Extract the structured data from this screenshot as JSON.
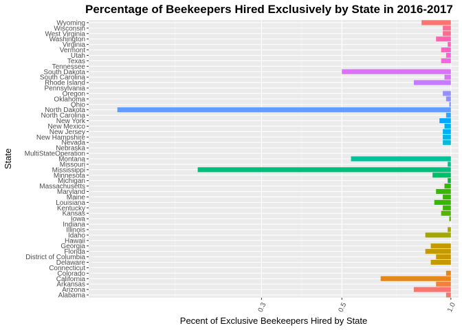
{
  "chart_data": {
    "type": "bar",
    "orientation": "horizontal",
    "title": "Percentage of Beekeepers Hired Exclusively by State in 2016-2017",
    "xlabel": "Pecent of Exclusive Beekeepers Hired by State",
    "ylabel": "State",
    "x_scale": "log",
    "xlim": [
      0.1,
      1.05
    ],
    "x_ticks": [
      {
        "value": 0.3,
        "label": "0.3"
      },
      {
        "value": 0.5,
        "label": "0.5"
      },
      {
        "value": 1.0,
        "label": "1.0"
      }
    ],
    "grid": true,
    "legend": "none",
    "bars": [
      {
        "category": "Alabama",
        "value": 0.97,
        "color": "#F8766D"
      },
      {
        "category": "Arizona",
        "value": 0.79,
        "color": "#F8766D"
      },
      {
        "category": "Arkansas",
        "value": 0.91,
        "color": "#EE8043"
      },
      {
        "category": "California",
        "value": 0.64,
        "color": "#E7851E"
      },
      {
        "category": "Colorado",
        "value": 0.97,
        "color": "#E7851E"
      },
      {
        "category": "Connecticut",
        "value": null,
        "color": "#D89000"
      },
      {
        "category": "Delaware",
        "value": 0.88,
        "color": "#C49A00"
      },
      {
        "category": "District of Columbia",
        "value": 0.91,
        "color": "#C49A00"
      },
      {
        "category": "Florida",
        "value": 0.85,
        "color": "#C49A00"
      },
      {
        "category": "Georgia",
        "value": 0.88,
        "color": "#C49A00"
      },
      {
        "category": "Hawaii",
        "value": null,
        "color": "#A3A500"
      },
      {
        "category": "Idaho",
        "value": 0.85,
        "color": "#A3A500"
      },
      {
        "category": "Illinois",
        "value": 0.98,
        "color": "#A3A500"
      },
      {
        "category": "Indiana",
        "value": null,
        "color": "#7CAE00"
      },
      {
        "category": "Iowa",
        "value": 0.99,
        "color": "#53B400"
      },
      {
        "category": "Kansas",
        "value": 0.94,
        "color": "#53B400"
      },
      {
        "category": "Kentucky",
        "value": 0.95,
        "color": "#39B600"
      },
      {
        "category": "Louisiana",
        "value": 0.9,
        "color": "#39B600"
      },
      {
        "category": "Maine",
        "value": 0.95,
        "color": "#39B600"
      },
      {
        "category": "Maryland",
        "value": 0.91,
        "color": "#39B600"
      },
      {
        "category": "Massachusetts",
        "value": 0.96,
        "color": "#39B600"
      },
      {
        "category": "Michigan",
        "value": 0.98,
        "color": "#00BA38"
      },
      {
        "category": "Minnesota",
        "value": 0.89,
        "color": "#00BE67"
      },
      {
        "category": "Mississippi",
        "value": 0.2,
        "color": "#00BF7D"
      },
      {
        "category": "Missouri",
        "value": 0.98,
        "color": "#00C08B"
      },
      {
        "category": "Montana",
        "value": 0.53,
        "color": "#00C19A"
      },
      {
        "category": "MultiStateOperation",
        "value": null,
        "color": "#00C1A9"
      },
      {
        "category": "Nebraska",
        "value": null,
        "color": "#00BFC4"
      },
      {
        "category": "Nevada",
        "value": 0.95,
        "color": "#00BCD8"
      },
      {
        "category": "New Hampshire",
        "value": 0.95,
        "color": "#00B8E7"
      },
      {
        "category": "New Jersey",
        "value": 0.95,
        "color": "#00B0F6"
      },
      {
        "category": "New Mexico",
        "value": 0.96,
        "color": "#00B0F6"
      },
      {
        "category": "New York",
        "value": 0.93,
        "color": "#00A9FF"
      },
      {
        "category": "North Carolina",
        "value": 0.97,
        "color": "#35A2FF"
      },
      {
        "category": "North Dakota",
        "value": 0.12,
        "color": "#619CFF"
      },
      {
        "category": "Ohio",
        "value": 0.99,
        "color": "#7D96FF"
      },
      {
        "category": "Oklahoma",
        "value": 0.97,
        "color": "#9590FF"
      },
      {
        "category": "Oregon",
        "value": 0.95,
        "color": "#9590FF"
      },
      {
        "category": "Pennsylvania",
        "value": null,
        "color": "#A58AFF"
      },
      {
        "category": "Rhode Island",
        "value": 0.79,
        "color": "#C77CFF"
      },
      {
        "category": "South Carolina",
        "value": 0.96,
        "color": "#D674F3"
      },
      {
        "category": "South Dakota",
        "value": 0.5,
        "color": "#DB72FB"
      },
      {
        "category": "Tennessee",
        "value": null,
        "color": "#E76BF3"
      },
      {
        "category": "Texas",
        "value": 0.94,
        "color": "#F564E3"
      },
      {
        "category": "Utah",
        "value": 0.97,
        "color": "#FA62DB"
      },
      {
        "category": "Vermont",
        "value": 0.94,
        "color": "#FF61C3"
      },
      {
        "category": "Virginia",
        "value": 0.98,
        "color": "#FF62BC"
      },
      {
        "category": "Washington",
        "value": 0.91,
        "color": "#FF64B0"
      },
      {
        "category": "West Virginia",
        "value": 0.95,
        "color": "#FF6C91"
      },
      {
        "category": "Wisconsin",
        "value": 0.95,
        "color": "#FF6C91"
      },
      {
        "category": "Wyoming",
        "value": 0.83,
        "color": "#F8766D"
      }
    ]
  }
}
